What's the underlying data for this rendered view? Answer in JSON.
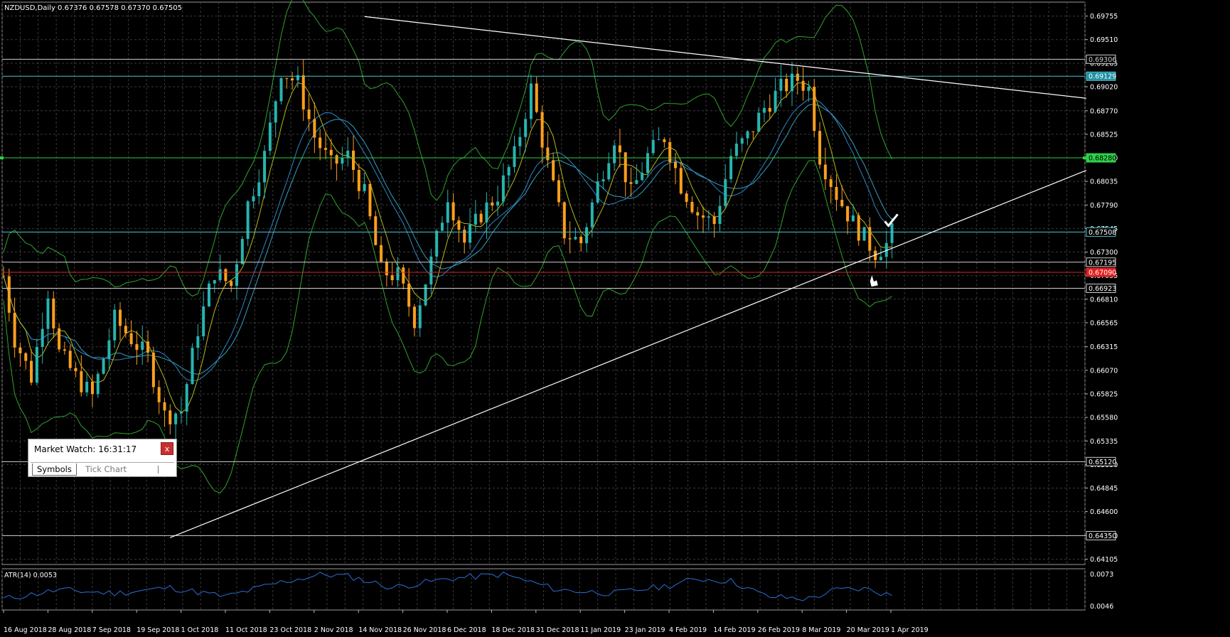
{
  "window": {
    "symbol_header": "NZDUSD,Daily  0.67376 0.67578 0.67370 0.67505"
  },
  "colors": {
    "background": "#000000",
    "grid": "#3a3a3a",
    "bull": "#26b5b0",
    "bear": "#ff9f1c",
    "bollinger": "#2fa32f",
    "ma_fast": "#b8b81a",
    "ma_slow": "#2f86c6",
    "atr": "#2a6fd8",
    "trendline": "#ffffff",
    "level_white": "#cfcfcf",
    "level_cyan": "#4fbfcf",
    "level_green": "#2fd14a",
    "level_red": "#e02020"
  },
  "price_axis": {
    "labels": [
      "0.69755",
      "0.69510",
      "0.69265",
      "0.69020",
      "0.68770",
      "0.68525",
      "0.68280",
      "0.68035",
      "0.67790",
      "0.67545",
      "0.67300",
      "0.67055",
      "0.66810",
      "0.66565",
      "0.66315",
      "0.66070",
      "0.65825",
      "0.65580",
      "0.65335",
      "0.65090",
      "0.64845",
      "0.64600",
      "0.64350",
      "0.64105"
    ],
    "badges": [
      {
        "text": "0.69306",
        "price": 0.69306,
        "color": "#cfcfcf",
        "fill": "#000000",
        "line": "#cfcfcf"
      },
      {
        "text": "0.69129",
        "price": 0.69129,
        "color": "#ffffff",
        "fill": "#1e8fa0",
        "line": "#4fbfcf"
      },
      {
        "text": "0.68280",
        "price": 0.6828,
        "color": "#000000",
        "fill": "#2fd14a",
        "line": "#2fd14a"
      },
      {
        "text": "0.67508",
        "price": 0.67508,
        "color": "#ffffff",
        "fill": "#000000",
        "line": "#4fbfcf"
      },
      {
        "text": "0.67195",
        "price": 0.67195,
        "color": "#ffffff",
        "fill": "#000000",
        "line": "#cfcfcf"
      },
      {
        "text": "0.67090",
        "price": 0.6709,
        "color": "#ffffff",
        "fill": "#e02020",
        "line": "#e02020"
      },
      {
        "text": "0.66923",
        "price": 0.66923,
        "color": "#ffffff",
        "fill": "#000000",
        "line": "#cfcfcf"
      },
      {
        "text": "0.65120",
        "price": 0.6512,
        "color": "#ffffff",
        "fill": "#000000",
        "line": "#cfcfcf"
      },
      {
        "text": "0.64350",
        "price": 0.6435,
        "color": "#ffffff",
        "fill": "#000000",
        "line": "#cfcfcf"
      }
    ]
  },
  "time_axis": [
    "16 Aug 2018",
    "28 Aug 2018",
    "7 Sep 2018",
    "19 Sep 2018",
    "1 Oct 2018",
    "11 Oct 2018",
    "23 Oct 2018",
    "2 Nov 2018",
    "14 Nov 2018",
    "26 Nov 2018",
    "6 Dec 2018",
    "18 Dec 2018",
    "31 Dec 2018",
    "11 Jan 2019",
    "23 Jan 2019",
    "4 Feb 2019",
    "14 Feb 2019",
    "26 Feb 2019",
    "8 Mar 2019",
    "20 Mar 2019",
    "1 Apr 2019"
  ],
  "atr": {
    "label": "ATR(14) 0.0053",
    "axis_labels": [
      "0.0073",
      "0.0046"
    ]
  },
  "market_watch": {
    "title": "Market Watch: 16:31:17",
    "close": "x",
    "tabs": [
      "Symbols",
      "Tick Chart"
    ]
  },
  "chart_data": {
    "type": "candlestick",
    "symbol": "NZDUSD",
    "timeframe": "Daily",
    "ylim": [
      0.6405,
      0.699
    ],
    "close_path": [
      [
        0,
        0.6705
      ],
      [
        4,
        0.664
      ],
      [
        10,
        0.66
      ],
      [
        16,
        0.669
      ],
      [
        20,
        0.6625
      ],
      [
        26,
        0.66
      ],
      [
        32,
        0.658
      ],
      [
        40,
        0.666
      ],
      [
        52,
        0.662
      ],
      [
        58,
        0.656
      ],
      [
        64,
        0.6565
      ],
      [
        70,
        0.665
      ],
      [
        76,
        0.671
      ],
      [
        82,
        0.6695
      ],
      [
        88,
        0.678
      ],
      [
        94,
        0.683
      ],
      [
        100,
        0.692
      ],
      [
        106,
        0.6905
      ],
      [
        112,
        0.685
      ],
      [
        118,
        0.682
      ],
      [
        124,
        0.683
      ],
      [
        130,
        0.679
      ],
      [
        136,
        0.671
      ],
      [
        142,
        0.6705
      ],
      [
        148,
        0.666
      ],
      [
        154,
        0.672
      ],
      [
        160,
        0.679
      ],
      [
        166,
        0.674
      ],
      [
        172,
        0.677
      ],
      [
        178,
        0.679
      ],
      [
        184,
        0.683
      ],
      [
        190,
        0.69
      ],
      [
        196,
        0.682
      ],
      [
        202,
        0.675
      ],
      [
        208,
        0.674
      ],
      [
        214,
        0.68
      ],
      [
        220,
        0.685
      ],
      [
        226,
        0.679
      ],
      [
        232,
        0.683
      ],
      [
        238,
        0.685
      ],
      [
        244,
        0.68
      ],
      [
        250,
        0.677
      ],
      [
        256,
        0.676
      ],
      [
        262,
        0.683
      ],
      [
        268,
        0.685
      ],
      [
        274,
        0.688
      ],
      [
        280,
        0.69
      ],
      [
        286,
        0.691
      ],
      [
        290,
        0.69
      ],
      [
        294,
        0.683
      ],
      [
        300,
        0.679
      ],
      [
        306,
        0.676
      ],
      [
        310,
        0.6745
      ],
      [
        314,
        0.673
      ],
      [
        318,
        0.6738
      ],
      [
        320,
        0.675
      ]
    ],
    "trendlines": [
      {
        "from": [
          130,
          0.6975
        ],
        "to": [
          390,
          0.689
        ]
      },
      {
        "from": [
          60,
          0.6433
        ],
        "to": [
          390,
          0.6815
        ]
      }
    ],
    "atr_path": [
      [
        0,
        0.005
      ],
      [
        20,
        0.0058
      ],
      [
        40,
        0.0055
      ],
      [
        60,
        0.006
      ],
      [
        80,
        0.0052
      ],
      [
        100,
        0.0065
      ],
      [
        115,
        0.0072
      ],
      [
        125,
        0.007
      ],
      [
        140,
        0.006
      ],
      [
        160,
        0.0068
      ],
      [
        180,
        0.0072
      ],
      [
        200,
        0.0058
      ],
      [
        220,
        0.0055
      ],
      [
        240,
        0.0062
      ],
      [
        250,
        0.0068
      ],
      [
        262,
        0.0066
      ],
      [
        275,
        0.0052
      ],
      [
        290,
        0.005
      ],
      [
        300,
        0.0058
      ],
      [
        310,
        0.0059
      ],
      [
        320,
        0.0053
      ]
    ],
    "atr_ylim": [
      0.004,
      0.0077
    ]
  }
}
